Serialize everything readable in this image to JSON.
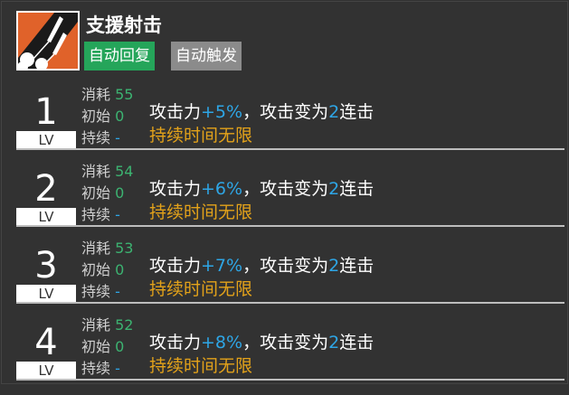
{
  "skill": {
    "name": "支援射击",
    "icon": "rocket-skill-icon",
    "tags": [
      "自动回复",
      "自动触发"
    ],
    "colors": {
      "tag_recovery": "#25a55a",
      "tag_trigger": "#8b8b8b",
      "icon_bg": "#e0622a",
      "value": "#3cb371",
      "highlight": "#2ea6e6",
      "duration": "#e3a21a"
    }
  },
  "labels": {
    "lv": "LV",
    "cost": "消耗",
    "initial": "初始",
    "duration": "持续"
  },
  "levels": [
    {
      "level": "1",
      "cost": "55",
      "initial": "0",
      "duration": "-",
      "desc_a": "攻击力",
      "desc_b": "+5%",
      "desc_c": "，攻击变为",
      "desc_d": "2",
      "desc_e": "连击",
      "desc2": "持续时间无限"
    },
    {
      "level": "2",
      "cost": "54",
      "initial": "0",
      "duration": "-",
      "desc_a": "攻击力",
      "desc_b": "+6%",
      "desc_c": "，攻击变为",
      "desc_d": "2",
      "desc_e": "连击",
      "desc2": "持续时间无限"
    },
    {
      "level": "3",
      "cost": "53",
      "initial": "0",
      "duration": "-",
      "desc_a": "攻击力",
      "desc_b": "+7%",
      "desc_c": "，攻击变为",
      "desc_d": "2",
      "desc_e": "连击",
      "desc2": "持续时间无限"
    },
    {
      "level": "4",
      "cost": "52",
      "initial": "0",
      "duration": "-",
      "desc_a": "攻击力",
      "desc_b": "+8%",
      "desc_c": "，攻击变为",
      "desc_d": "2",
      "desc_e": "连击",
      "desc2": "持续时间无限"
    }
  ]
}
